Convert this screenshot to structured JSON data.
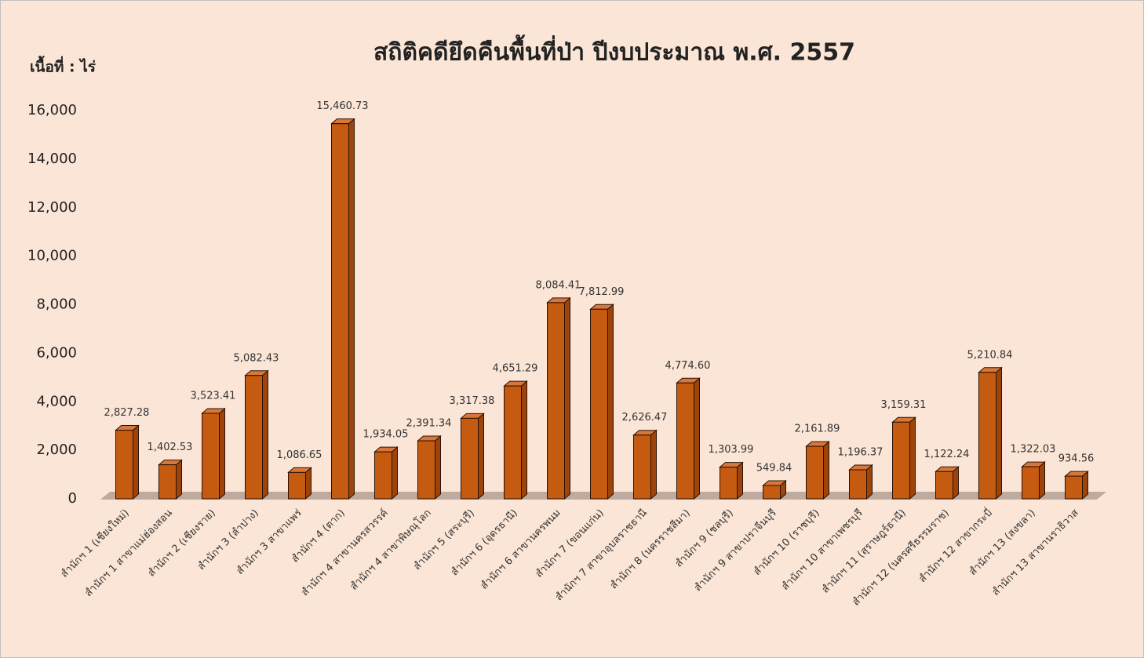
{
  "chart_data": {
    "type": "bar3d",
    "title": "สถิติคดียึดคืนพื้นที่ป่า ปีงบประมาณ พ.ศ. 2557",
    "y_label": "เนื้อที่ : ไร่",
    "color": "#c55a11",
    "categories": [
      "สำนักฯ 1 (เชียงใหม่)",
      "สำนักฯ 1 สาขาแม่ฮ่องสอน",
      "สำนักฯ 2 (เชียงราย)",
      "สำนักฯ 3 (ลำปาง)",
      "สำนักฯ 3 สาขาแพร่",
      "สำนักฯ 4 (ตาก)",
      "สำนักฯ 4 สาขานครสวรรค์",
      "สำนักฯ 4 สาขาพิษณุโลก",
      "สำนักฯ 5 (สระบุรี)",
      "สำนักฯ 6 (อุดรธานี)",
      "สำนักฯ 6 สาขานครพนม",
      "สำนักฯ 7 (ขอนแก่น)",
      "สำนักฯ 7 สาขาอุบลราชธานี",
      "สำนักฯ 8 (นครราชสีมา)",
      "สำนักฯ 9 (ชลบุรี)",
      "สำนักฯ 9 สาขาปราจีนบุรี",
      "สำนักฯ 10 (ราชบุรี)",
      "สำนักฯ 10 สาขาเพชรบุรี",
      "สำนักฯ 11 (สุราษฎร์ธานี)",
      "สำนักฯ 12 (นครศรีธรรมราช)",
      "สำนักฯ 12 สาขากระบี่",
      "สำนักฯ 13 (สงขลา)",
      "สำนักฯ 13 สาขานราธิวาส"
    ],
    "values": [
      2827.28,
      1402.53,
      3523.41,
      5082.43,
      1086.65,
      15460.73,
      1934.05,
      2391.34,
      3317.38,
      4651.29,
      8084.41,
      7812.99,
      2626.47,
      4774.6,
      1303.99,
      549.84,
      2161.89,
      1196.37,
      3159.31,
      1122.24,
      5210.84,
      1322.03,
      934.56
    ],
    "value_labels": [
      "2,827.28",
      "1,402.53",
      "3,523.41",
      "5,082.43",
      "1,086.65",
      "15,460.73",
      "1,934.05",
      "2,391.34",
      "3,317.38",
      "4,651.29",
      "8,084.41",
      "7,812.99",
      "2,626.47",
      "4,774.60",
      "1,303.99",
      "549.84",
      "2,161.89",
      "1,196.37",
      "3,159.31",
      "1,122.24",
      "5,210.84",
      "1,322.03",
      "934.56"
    ],
    "ylim": [
      0,
      16000
    ],
    "yticks": [
      0,
      {
        "value": 2000,
        "label": "2,000"
      },
      {
        "value": 4000,
        "label": "4,000"
      },
      {
        "value": 6000,
        "label": "6,000"
      },
      {
        "value": 8000,
        "label": "8,000"
      },
      {
        "value": 10000,
        "label": "10,000"
      },
      {
        "value": 12000,
        "label": "12,000"
      },
      {
        "value": 14000,
        "label": "14,000"
      },
      {
        "value": 16000,
        "label": "16,000"
      }
    ],
    "grid": false
  }
}
